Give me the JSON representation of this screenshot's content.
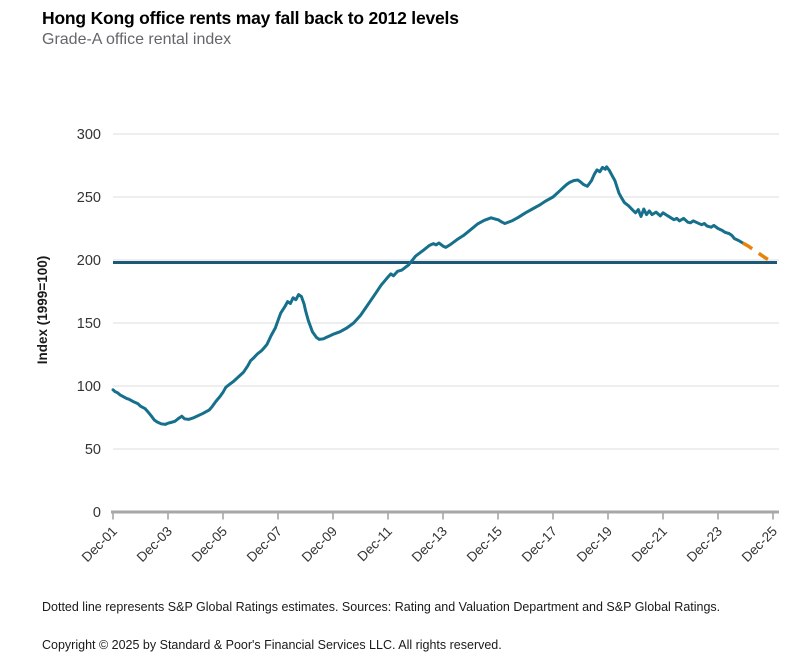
{
  "header": {
    "title": "Hong Kong office rents may fall back to 2012 levels",
    "subtitle": "Grade-A office rental index"
  },
  "footer": {
    "note": "Dotted line represents S&P Global Ratings estimates. Sources: Rating and Valuation Department and S&P Global Ratings.",
    "copyright": "Copyright © 2025 by Standard & Poor's Financial Services LLC. All rights reserved."
  },
  "colors": {
    "actual_line": "#16708C",
    "estimate_line": "#E8820D",
    "reference_line": "#1D5877",
    "gridline": "#E8E8E8",
    "axis": "#A7A7A7",
    "tick_label": "#333333"
  },
  "chart_data": {
    "type": "line",
    "title": "Hong Kong office rents may fall back to 2012 levels",
    "subtitle": "Grade-A office rental index",
    "xlabel": "",
    "ylabel": "Index (1999=100)",
    "ylim": [
      0,
      300
    ],
    "yticks": [
      0,
      50,
      100,
      150,
      200,
      250,
      300
    ],
    "xtick_labels": [
      "Dec-01",
      "Dec-03",
      "Dec-05",
      "Dec-07",
      "Dec-09",
      "Dec-11",
      "Dec-13",
      "Dec-15",
      "Dec-17",
      "Dec-19",
      "Dec-21",
      "Dec-23",
      "Dec-25"
    ],
    "xtick_t": [
      0,
      2,
      4,
      6,
      8,
      10,
      12,
      14,
      16,
      18,
      20,
      22,
      24
    ],
    "x_unit": "years since Dec-2001",
    "grid": "horizontal",
    "legend": "none",
    "reference_line": {
      "value": 198,
      "meaning": "2012 rent level"
    },
    "series": [
      {
        "name": "Grade-A office rental index (actual)",
        "style": "solid",
        "points": [
          [
            0,
            97
          ],
          [
            0.08,
            95.5
          ],
          [
            0.17,
            94.5
          ],
          [
            0.25,
            93
          ],
          [
            0.42,
            91
          ],
          [
            0.5,
            90
          ],
          [
            0.58,
            89.5
          ],
          [
            0.75,
            87.5
          ],
          [
            0.9,
            86
          ],
          [
            1,
            84
          ],
          [
            1.17,
            82
          ],
          [
            1.25,
            80
          ],
          [
            1.4,
            76
          ],
          [
            1.5,
            73
          ],
          [
            1.6,
            71.5
          ],
          [
            1.75,
            70
          ],
          [
            1.9,
            69.5
          ],
          [
            2,
            70.5
          ],
          [
            2.1,
            71
          ],
          [
            2.25,
            72
          ],
          [
            2.4,
            74.5
          ],
          [
            2.5,
            76
          ],
          [
            2.6,
            74
          ],
          [
            2.75,
            73.5
          ],
          [
            2.9,
            74.5
          ],
          [
            3,
            75.5
          ],
          [
            3.25,
            78
          ],
          [
            3.5,
            81
          ],
          [
            3.6,
            83.5
          ],
          [
            3.75,
            88
          ],
          [
            3.9,
            92
          ],
          [
            4,
            95
          ],
          [
            4.1,
            99
          ],
          [
            4.25,
            101.5
          ],
          [
            4.4,
            104
          ],
          [
            4.5,
            106
          ],
          [
            4.75,
            111
          ],
          [
            4.9,
            116
          ],
          [
            5,
            120
          ],
          [
            5.1,
            122
          ],
          [
            5.25,
            125.5
          ],
          [
            5.4,
            128
          ],
          [
            5.5,
            130.5
          ],
          [
            5.6,
            133
          ],
          [
            5.75,
            140
          ],
          [
            5.9,
            146
          ],
          [
            6,
            152
          ],
          [
            6.1,
            158
          ],
          [
            6.25,
            163
          ],
          [
            6.35,
            167
          ],
          [
            6.45,
            165.5
          ],
          [
            6.55,
            170
          ],
          [
            6.65,
            168.5
          ],
          [
            6.75,
            172.5
          ],
          [
            6.85,
            171
          ],
          [
            6.95,
            165
          ],
          [
            7,
            160
          ],
          [
            7.1,
            152
          ],
          [
            7.25,
            143
          ],
          [
            7.4,
            138.5
          ],
          [
            7.5,
            137
          ],
          [
            7.65,
            137.5
          ],
          [
            7.75,
            138.5
          ],
          [
            7.9,
            140
          ],
          [
            8,
            141
          ],
          [
            8.25,
            143
          ],
          [
            8.5,
            146
          ],
          [
            8.75,
            150
          ],
          [
            9,
            156
          ],
          [
            9.25,
            164
          ],
          [
            9.5,
            172
          ],
          [
            9.75,
            180
          ],
          [
            9.9,
            184
          ],
          [
            10,
            186.5
          ],
          [
            10.1,
            189
          ],
          [
            10.2,
            187.5
          ],
          [
            10.35,
            191
          ],
          [
            10.5,
            192
          ],
          [
            10.65,
            194.5
          ],
          [
            10.75,
            196
          ],
          [
            11,
            203
          ],
          [
            11.15,
            205.5
          ],
          [
            11.3,
            208
          ],
          [
            11.5,
            211.5
          ],
          [
            11.65,
            213
          ],
          [
            11.75,
            212
          ],
          [
            11.85,
            213.5
          ],
          [
            12,
            211
          ],
          [
            12.1,
            210
          ],
          [
            12.25,
            212
          ],
          [
            12.5,
            216
          ],
          [
            12.75,
            219.5
          ],
          [
            13,
            224
          ],
          [
            13.25,
            228.5
          ],
          [
            13.5,
            231.5
          ],
          [
            13.75,
            233.5
          ],
          [
            13.9,
            232.5
          ],
          [
            14,
            232
          ],
          [
            14.15,
            230
          ],
          [
            14.25,
            229
          ],
          [
            14.5,
            231
          ],
          [
            14.75,
            234
          ],
          [
            15,
            237.5
          ],
          [
            15.25,
            240.5
          ],
          [
            15.5,
            243.5
          ],
          [
            15.75,
            247
          ],
          [
            16,
            250
          ],
          [
            16.1,
            252
          ],
          [
            16.25,
            255
          ],
          [
            16.4,
            258
          ],
          [
            16.5,
            260
          ],
          [
            16.6,
            261.5
          ],
          [
            16.75,
            263
          ],
          [
            16.9,
            263.5
          ],
          [
            17,
            262
          ],
          [
            17.1,
            260
          ],
          [
            17.25,
            258.5
          ],
          [
            17.4,
            263
          ],
          [
            17.5,
            268
          ],
          [
            17.6,
            271.5
          ],
          [
            17.7,
            270
          ],
          [
            17.8,
            273.5
          ],
          [
            17.9,
            272
          ],
          [
            17.95,
            274
          ],
          [
            18.05,
            271
          ],
          [
            18.15,
            267
          ],
          [
            18.25,
            263
          ],
          [
            18.4,
            253
          ],
          [
            18.5,
            249
          ],
          [
            18.6,
            245.5
          ],
          [
            18.75,
            243
          ],
          [
            18.9,
            239.5
          ],
          [
            19,
            237.5
          ],
          [
            19.1,
            240
          ],
          [
            19.2,
            234.5
          ],
          [
            19.3,
            240.5
          ],
          [
            19.4,
            236
          ],
          [
            19.5,
            239
          ],
          [
            19.6,
            236
          ],
          [
            19.75,
            238
          ],
          [
            19.9,
            235
          ],
          [
            20,
            237.5
          ],
          [
            20.1,
            236
          ],
          [
            20.25,
            234
          ],
          [
            20.4,
            232
          ],
          [
            20.5,
            233
          ],
          [
            20.6,
            231
          ],
          [
            20.75,
            233
          ],
          [
            20.9,
            230
          ],
          [
            21,
            229.5
          ],
          [
            21.1,
            231
          ],
          [
            21.25,
            229.5
          ],
          [
            21.4,
            228
          ],
          [
            21.5,
            229
          ],
          [
            21.6,
            227
          ],
          [
            21.75,
            226
          ],
          [
            21.85,
            227.5
          ],
          [
            22,
            225
          ],
          [
            22.15,
            223.5
          ],
          [
            22.25,
            222
          ],
          [
            22.4,
            221
          ],
          [
            22.5,
            219.5
          ],
          [
            22.6,
            217
          ],
          [
            22.75,
            215.5
          ],
          [
            22.9,
            213.5
          ]
        ]
      },
      {
        "name": "S&P Global Ratings estimates",
        "style": "dashed",
        "points": [
          [
            22.9,
            213.5
          ],
          [
            23.1,
            211
          ],
          [
            23.3,
            208
          ],
          [
            23.5,
            205
          ],
          [
            23.7,
            202
          ],
          [
            23.85,
            200
          ],
          [
            24,
            197.5
          ]
        ]
      }
    ]
  }
}
